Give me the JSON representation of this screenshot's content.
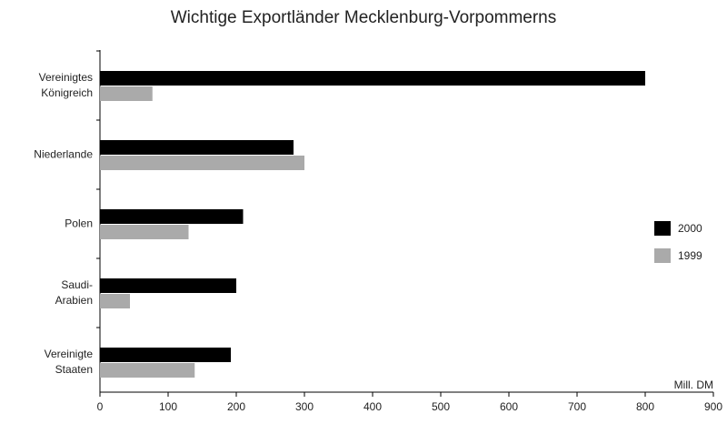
{
  "chart_data": {
    "type": "bar",
    "orientation": "horizontal",
    "title": "Wichtige Exportländer Mecklenburg-Vorpommerns",
    "categories": [
      "Vereinigtes\nKönigreich",
      "Niederlande",
      "Polen",
      "Saudi-\nArabien",
      "Vereinigte\nStaaten"
    ],
    "series": [
      {
        "name": "2000",
        "color": "#000000",
        "values": [
          800,
          284,
          210,
          200,
          192
        ]
      },
      {
        "name": "1999",
        "color": "#aaaaaa",
        "values": [
          77,
          300,
          130,
          44,
          139
        ]
      }
    ],
    "xlabel": "Mill. DM",
    "xlim": [
      0,
      900
    ],
    "xticks": [
      0,
      100,
      200,
      300,
      400,
      500,
      600,
      700,
      800,
      900
    ],
    "legend": "right"
  }
}
